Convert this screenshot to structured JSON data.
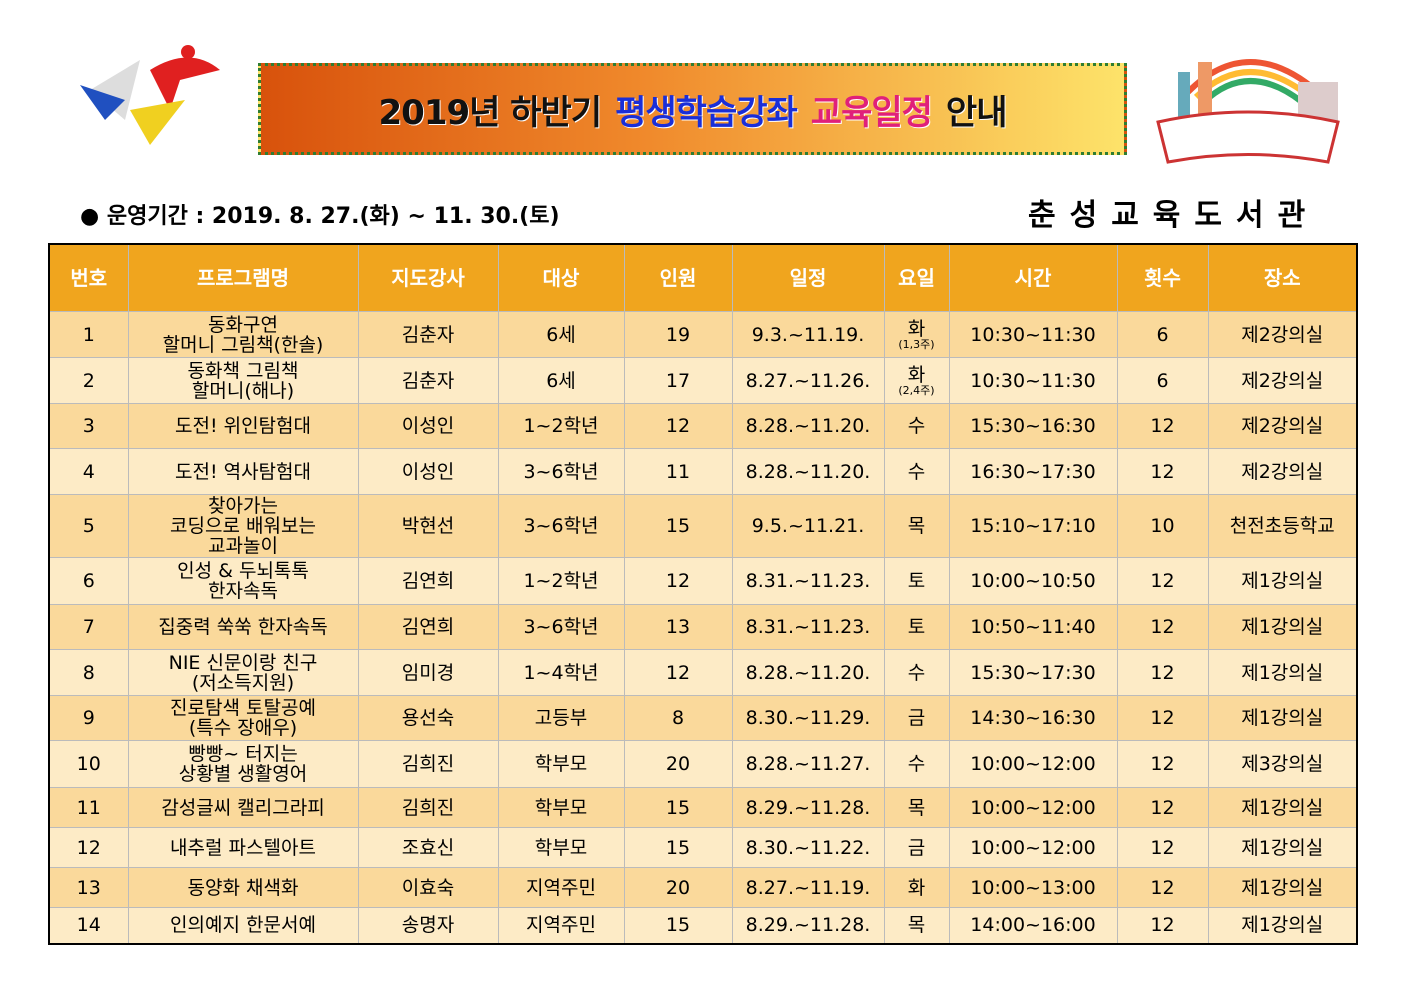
{
  "header": {
    "title": [
      "2019년 하반기",
      "평생학습강좌",
      "교육일정",
      "안내"
    ],
    "period": "● 운영기간 : 2019. 8. 27.(화) ~ 11. 30.(토)",
    "library": "춘성교육도서관"
  },
  "table": {
    "columns": [
      "번호",
      "프로그램명",
      "지도강사",
      "대상",
      "인원",
      "일정",
      "요일",
      "시간",
      "횟수",
      "장소"
    ],
    "rows": [
      {
        "no": 1,
        "program": [
          "동화구연",
          "할머니 그림책(한솔)"
        ],
        "teacher": "김춘자",
        "target": "6세",
        "count": 19,
        "schedule": "9.3.~11.19.",
        "day": "화",
        "day_note": "(1,3주)",
        "time": "10:30~11:30",
        "sessions": 6,
        "place": "제2강의실"
      },
      {
        "no": 2,
        "program": [
          "동화책 그림책",
          "할머니(해나)"
        ],
        "teacher": "김춘자",
        "target": "6세",
        "count": 17,
        "schedule": "8.27.~11.26.",
        "day": "화",
        "day_note": "(2,4주)",
        "time": "10:30~11:30",
        "sessions": 6,
        "place": "제2강의실"
      },
      {
        "no": 3,
        "program": [
          "도전! 위인탐험대"
        ],
        "teacher": "이성인",
        "target": "1~2학년",
        "count": 12,
        "schedule": "8.28.~11.20.",
        "day": "수",
        "time": "15:30~16:30",
        "sessions": 12,
        "place": "제2강의실"
      },
      {
        "no": 4,
        "program": [
          "도전! 역사탐험대"
        ],
        "teacher": "이성인",
        "target": "3~6학년",
        "count": 11,
        "schedule": "8.28.~11.20.",
        "day": "수",
        "time": "16:30~17:30",
        "sessions": 12,
        "place": "제2강의실"
      },
      {
        "no": 5,
        "program": [
          "찾아가는",
          "코딩으로 배워보는",
          "교과놀이"
        ],
        "teacher": "박현선",
        "target": "3~6학년",
        "count": 15,
        "schedule": "9.5.~11.21.",
        "day": "목",
        "time": "15:10~17:10",
        "sessions": 10,
        "place": "천전초등학교"
      },
      {
        "no": 6,
        "program": [
          "인성 & 두뇌톡톡",
          "한자속독"
        ],
        "teacher": "김연희",
        "target": "1~2학년",
        "count": 12,
        "schedule": "8.31.~11.23.",
        "day": "토",
        "time": "10:00~10:50",
        "sessions": 12,
        "place": "제1강의실"
      },
      {
        "no": 7,
        "program": [
          "집중력 쑥쑥 한자속독"
        ],
        "teacher": "김연희",
        "target": "3~6학년",
        "count": 13,
        "schedule": "8.31.~11.23.",
        "day": "토",
        "time": "10:50~11:40",
        "sessions": 12,
        "place": "제1강의실"
      },
      {
        "no": 8,
        "program": [
          "NIE 신문이랑 친구",
          "(저소득지원)"
        ],
        "teacher": "임미경",
        "target": "1~4학년",
        "count": 12,
        "schedule": "8.28.~11.20.",
        "day": "수",
        "time": "15:30~17:30",
        "sessions": 12,
        "place": "제1강의실"
      },
      {
        "no": 9,
        "program": [
          "진로탐색 토탈공예",
          "(특수 장애우)"
        ],
        "teacher": "용선숙",
        "target": "고등부",
        "count": 8,
        "schedule": "8.30.~11.29.",
        "day": "금",
        "time": "14:30~16:30",
        "sessions": 12,
        "place": "제1강의실"
      },
      {
        "no": 10,
        "program": [
          "빵빵~ 터지는",
          "상황별 생활영어"
        ],
        "teacher": "김희진",
        "target": "학부모",
        "count": 20,
        "schedule": "8.28.~11.27.",
        "day": "수",
        "time": "10:00~12:00",
        "sessions": 12,
        "place": "제3강의실"
      },
      {
        "no": 11,
        "program": [
          "감성글씨 캘리그라피"
        ],
        "teacher": "김희진",
        "target": "학부모",
        "count": 15,
        "schedule": "8.29.~11.28.",
        "day": "목",
        "time": "10:00~12:00",
        "sessions": 12,
        "place": "제1강의실"
      },
      {
        "no": 12,
        "program": [
          "내추럴 파스텔아트"
        ],
        "teacher": "조효신",
        "target": "학부모",
        "count": 15,
        "schedule": "8.30.~11.22.",
        "day": "금",
        "time": "10:00~12:00",
        "sessions": 12,
        "place": "제1강의실"
      },
      {
        "no": 13,
        "program": [
          "동양화 채색화"
        ],
        "teacher": "이효숙",
        "target": "지역주민",
        "count": 20,
        "schedule": "8.27.~11.19.",
        "day": "화",
        "time": "10:00~13:00",
        "sessions": 12,
        "place": "제1강의실"
      },
      {
        "no": 14,
        "program": [
          "인의예지 한문서예"
        ],
        "teacher": "송명자",
        "target": "지역주민",
        "count": 15,
        "schedule": "8.29.~11.28.",
        "day": "목",
        "time": "14:00~16:00",
        "sessions": 12,
        "place": "제1강의실"
      }
    ]
  }
}
